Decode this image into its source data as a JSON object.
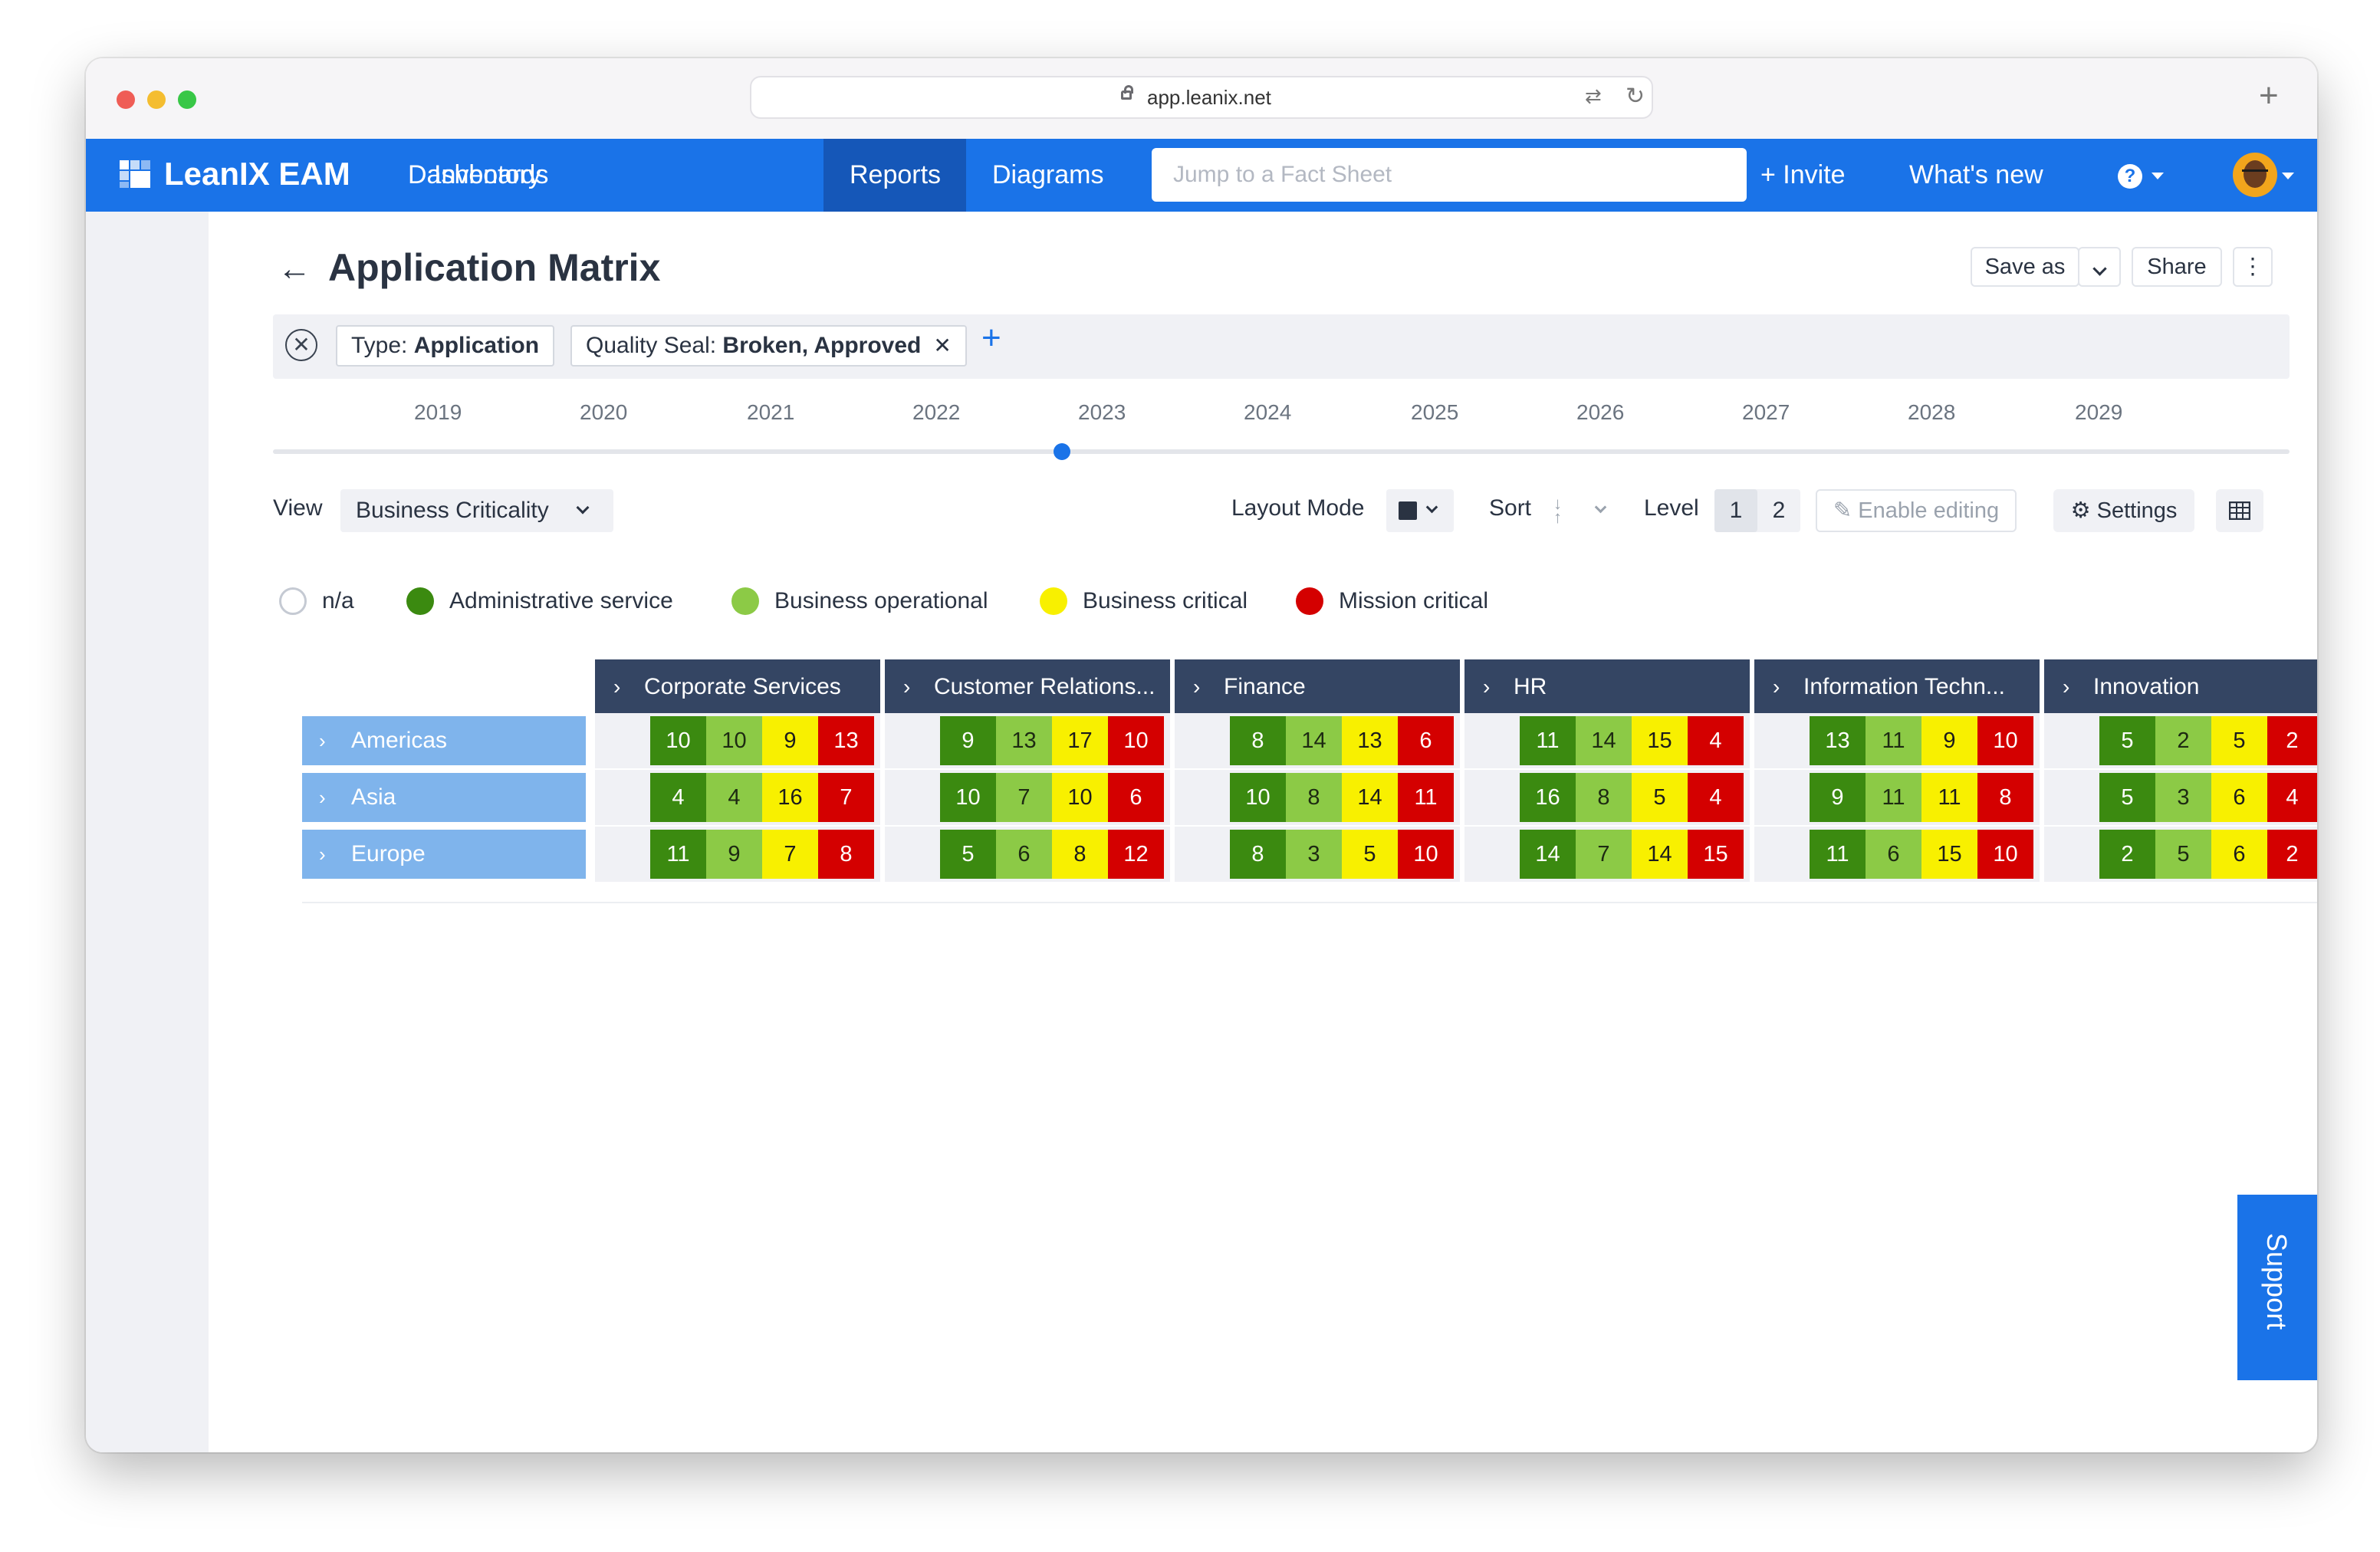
{
  "browser": {
    "url": "app.leanix.net"
  },
  "app": {
    "name": "LeanIX EAM"
  },
  "nav": {
    "items": [
      "Dashboards",
      "Inventory",
      "Reports",
      "Diagrams"
    ],
    "active": "Reports",
    "search_placeholder": "Jump to a Fact Sheet",
    "invite": "+ Invite",
    "whats_new": "What's new"
  },
  "page": {
    "title": "Application Matrix",
    "save_as": "Save as",
    "share": "Share",
    "more": "⋮"
  },
  "filters": {
    "type_label": "Type: ",
    "type_value": "Application",
    "quality_label": "Quality Seal: ",
    "quality_value": "Broken, Approved",
    "remove": "✕",
    "add": "+"
  },
  "timeline": {
    "years": [
      "2019",
      "2020",
      "2021",
      "2022",
      "2023",
      "2024",
      "2025",
      "2026",
      "2027",
      "2028",
      "2029"
    ]
  },
  "controls": {
    "view_label": "View",
    "view_value": "Business Criticality",
    "layout_mode_label": "Layout Mode",
    "sort_label": "Sort",
    "level_label": "Level",
    "levels": [
      "1",
      "2"
    ],
    "active_level": "1",
    "enable_editing": "Enable editing",
    "settings": "Settings"
  },
  "legend": [
    {
      "label": "n/a",
      "color": "#ffffff"
    },
    {
      "label": "Administrative service",
      "color": "#3b8a10"
    },
    {
      "label": "Business operational",
      "color": "#8cca46"
    },
    {
      "label": "Business critical",
      "color": "#f8f000"
    },
    {
      "label": "Mission critical",
      "color": "#d40000"
    }
  ],
  "matrix": {
    "columns": [
      "Corporate Services",
      "Customer Relations...",
      "Finance",
      "HR",
      "Information Techn...",
      "Innovation"
    ],
    "rows": [
      {
        "label": "Americas",
        "cells": [
          [
            "10",
            "10",
            "9",
            "13"
          ],
          [
            "9",
            "13",
            "17",
            "10"
          ],
          [
            "8",
            "14",
            "13",
            "6"
          ],
          [
            "11",
            "14",
            "15",
            "4"
          ],
          [
            "13",
            "11",
            "9",
            "10"
          ],
          [
            "5",
            "2",
            "5",
            "2"
          ]
        ]
      },
      {
        "label": "Asia",
        "cells": [
          [
            "4",
            "4",
            "16",
            "7"
          ],
          [
            "10",
            "7",
            "10",
            "6"
          ],
          [
            "10",
            "8",
            "14",
            "11"
          ],
          [
            "16",
            "8",
            "5",
            "4"
          ],
          [
            "9",
            "11",
            "11",
            "8"
          ],
          [
            "5",
            "3",
            "6",
            "4"
          ]
        ]
      },
      {
        "label": "Europe",
        "cells": [
          [
            "11",
            "9",
            "7",
            "8"
          ],
          [
            "5",
            "6",
            "8",
            "12"
          ],
          [
            "8",
            "3",
            "5",
            "10"
          ],
          [
            "14",
            "7",
            "14",
            "15"
          ],
          [
            "11",
            "6",
            "15",
            "10"
          ],
          [
            "2",
            "5",
            "6",
            "2"
          ]
        ]
      }
    ]
  },
  "support": {
    "label": "Support"
  }
}
